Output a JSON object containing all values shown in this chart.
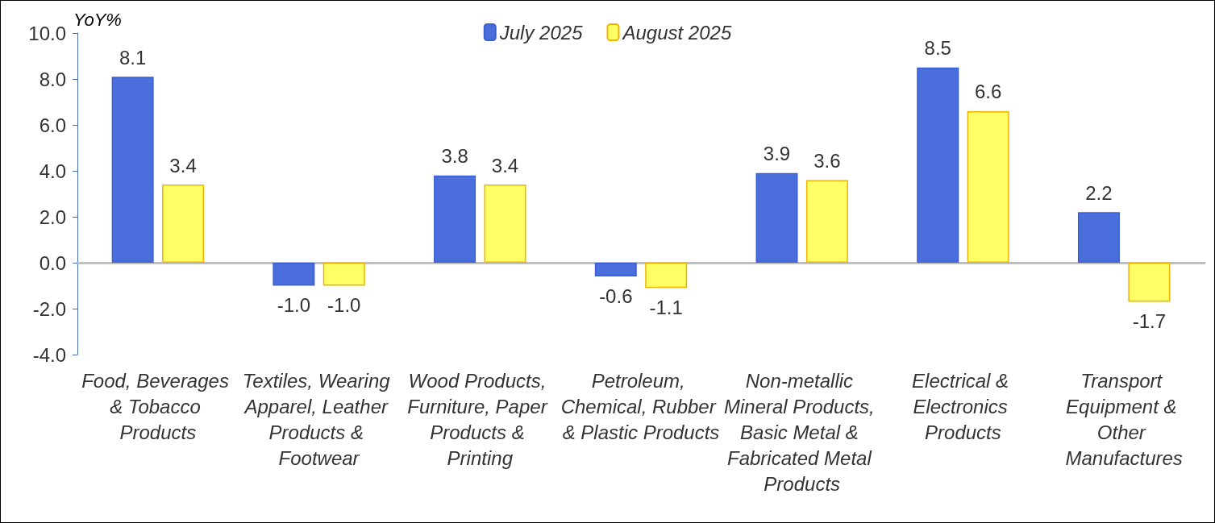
{
  "chart_data": {
    "type": "bar",
    "ylabel": "YoY%",
    "categories": [
      "Food, Beverages & Tobacco Products",
      "Textiles, Wearing Apparel, Leather Products & Footwear",
      "Wood Products, Furniture, Paper Products & Printing",
      "Petroleum, Chemical, Rubber & Plastic Products",
      "Non-metallic Mineral Products, Basic Metal & Fabricated Metal Products",
      "Electrical & Electronics Products",
      "Transport Equipment & Other Manufactures"
    ],
    "series": [
      {
        "name": "July 2025",
        "color": "#4a6fdc",
        "values": [
          8.1,
          -1.0,
          3.8,
          -0.6,
          3.9,
          8.5,
          2.2
        ],
        "value_labels": [
          "8.1",
          "-1.0",
          "3.8",
          "-0.6",
          "3.9",
          "8.5",
          "2.2"
        ]
      },
      {
        "name": "August 2025",
        "color": "#ffff66",
        "values": [
          3.4,
          -1.0,
          3.4,
          -1.1,
          3.6,
          6.6,
          -1.7
        ],
        "value_labels": [
          "3.4",
          "-1.0",
          "3.4",
          "-1.1",
          "3.6",
          "6.6",
          "-1.7"
        ]
      }
    ],
    "ylim": [
      -4,
      10
    ],
    "yticks": [
      {
        "value": -4,
        "label": "-4.0"
      },
      {
        "value": -2,
        "label": "-2.0"
      },
      {
        "value": 0,
        "label": "0.0"
      },
      {
        "value": 2,
        "label": "2.0"
      },
      {
        "value": 4,
        "label": "4.0"
      },
      {
        "value": 6,
        "label": "6.0"
      },
      {
        "value": 8,
        "label": "8.0"
      },
      {
        "value": 10,
        "label": "10.0"
      }
    ],
    "legend": "top"
  }
}
